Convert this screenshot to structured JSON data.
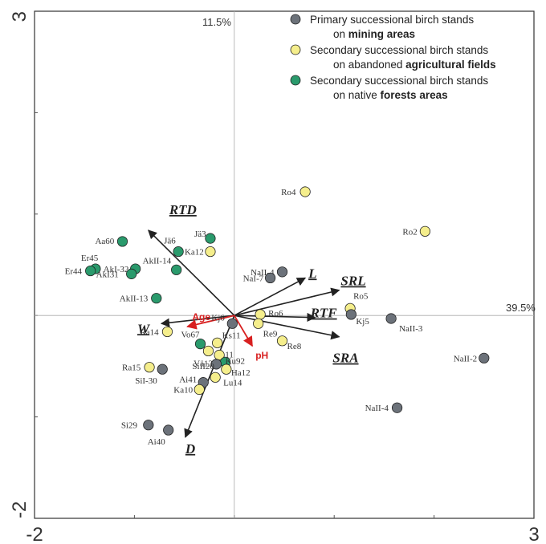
{
  "chart_data": {
    "type": "scatter",
    "subtype": "ordination biplot",
    "title": "",
    "axis1_label": "39.5%",
    "axis2_label": "11.5%",
    "xlim": [
      -2,
      3
    ],
    "ylim": [
      -2,
      3
    ],
    "x_ticks": [
      "-2",
      "3"
    ],
    "y_ticks": [
      "3",
      "-2"
    ],
    "legend": [
      {
        "group": "mining",
        "color": "#6c727a",
        "line1": "Primary successional birch stands",
        "line2_plain": "on ",
        "line2_bold": "mining areas"
      },
      {
        "group": "agri",
        "color": "#f5ee8c",
        "line1": "Secondary successional birch stands",
        "line2_plain": "on abandoned ",
        "line2_bold": "agricultural fields"
      },
      {
        "group": "forest",
        "color": "#2a9a6c",
        "line1": "Secondary successional birch stands",
        "line2_plain": "on native ",
        "line2_bold": "forests areas"
      }
    ],
    "points": [
      {
        "label": "Ro4",
        "group": "agri",
        "x": 0.71,
        "y": 1.22
      },
      {
        "label": "Ro2",
        "group": "agri",
        "x": 1.91,
        "y": 0.83
      },
      {
        "label": "NaII-4",
        "group": "mining",
        "x": 0.48,
        "y": 0.43
      },
      {
        "label": "NaI-7",
        "group": "mining",
        "x": 0.36,
        "y": 0.37
      },
      {
        "label": "Ro5",
        "group": "agri",
        "x": 1.16,
        "y": 0.07
      },
      {
        "label": "Kj5",
        "group": "mining",
        "x": 1.17,
        "y": 0.01
      },
      {
        "label": "NaII-3",
        "group": "mining",
        "x": 1.57,
        "y": -0.03
      },
      {
        "label": "NaII-2",
        "group": "mining",
        "x": 2.5,
        "y": -0.42
      },
      {
        "label": "NaII-4",
        "group": "mining",
        "x": 1.63,
        "y": -0.91
      },
      {
        "label": "Ro6",
        "group": "agri",
        "x": 0.26,
        "y": 0.01
      },
      {
        "label": "Re9",
        "group": "agri",
        "x": 0.24,
        "y": -0.08
      },
      {
        "label": "Re8",
        "group": "agri",
        "x": 0.48,
        "y": -0.25
      },
      {
        "label": "Kj6",
        "group": "mining",
        "x": -0.02,
        "y": -0.08
      },
      {
        "label": "Aa60",
        "group": "forest",
        "x": -1.12,
        "y": 0.73
      },
      {
        "label": "Jä3",
        "group": "forest",
        "x": -0.24,
        "y": 0.76
      },
      {
        "label": "Jä6",
        "group": "forest",
        "x": -0.56,
        "y": 0.63
      },
      {
        "label": "Ka12",
        "group": "agri",
        "x": -0.24,
        "y": 0.63
      },
      {
        "label": "AkI-32",
        "group": "forest",
        "x": -0.99,
        "y": 0.46
      },
      {
        "label": "AkII-14",
        "group": "forest",
        "x": -0.58,
        "y": 0.45
      },
      {
        "label": "Er45",
        "group": "forest",
        "x": -1.39,
        "y": 0.46
      },
      {
        "label": "Er44",
        "group": "forest",
        "x": -1.44,
        "y": 0.44
      },
      {
        "label": "AkI31",
        "group": "forest",
        "x": -1.03,
        "y": 0.41
      },
      {
        "label": "AkII-13",
        "group": "forest",
        "x": -0.78,
        "y": 0.17
      },
      {
        "label": "Ra14",
        "group": "agri",
        "x": -0.67,
        "y": -0.16
      },
      {
        "label": "Vo67",
        "group": "forest",
        "x": -0.34,
        "y": -0.28
      },
      {
        "label": "Ks11",
        "group": "agri",
        "x": -0.17,
        "y": -0.27
      },
      {
        "label": "Ka11",
        "group": "agri",
        "x": -0.26,
        "y": -0.35
      },
      {
        "label": "Vä13",
        "group": "agri",
        "x": -0.15,
        "y": -0.39
      },
      {
        "label": "Ku92",
        "group": "forest",
        "x": -0.09,
        "y": -0.46
      },
      {
        "label": "SiII20",
        "group": "mining",
        "x": -0.18,
        "y": -0.48
      },
      {
        "label": "Ha12",
        "group": "agri",
        "x": -0.08,
        "y": -0.53
      },
      {
        "label": "Ra15",
        "group": "agri",
        "x": -0.85,
        "y": -0.51
      },
      {
        "label": "SiI-30",
        "group": "mining",
        "x": -0.72,
        "y": -0.53
      },
      {
        "label": "Lu14",
        "group": "agri",
        "x": -0.19,
        "y": -0.61
      },
      {
        "label": "Ai41",
        "group": "mining",
        "x": -0.31,
        "y": -0.66
      },
      {
        "label": "Ka10",
        "group": "agri",
        "x": -0.35,
        "y": -0.73
      },
      {
        "label": "Si29",
        "group": "mining",
        "x": -0.86,
        "y": -1.08
      },
      {
        "label": "Ai40",
        "group": "mining",
        "x": -0.66,
        "y": -1.13
      }
    ],
    "vectors": [
      {
        "label": "RTD",
        "style": "species",
        "x": -0.86,
        "y": 0.84
      },
      {
        "label": "L",
        "style": "species",
        "x": 0.71,
        "y": 0.37
      },
      {
        "label": "SRL",
        "style": "species",
        "x": 1.05,
        "y": 0.25
      },
      {
        "label": "RTF",
        "style": "species",
        "x": 0.81,
        "y": -0.02
      },
      {
        "label": "SRA",
        "style": "species",
        "x": 1.05,
        "y": -0.21
      },
      {
        "label": "W",
        "style": "species",
        "x": -0.73,
        "y": -0.08
      },
      {
        "label": "D",
        "style": "species",
        "x": -0.49,
        "y": -1.2
      },
      {
        "label": "Age",
        "style": "environment",
        "x": -0.47,
        "y": -0.11
      },
      {
        "label": "pH",
        "style": "environment",
        "x": 0.18,
        "y": -0.3
      }
    ]
  }
}
